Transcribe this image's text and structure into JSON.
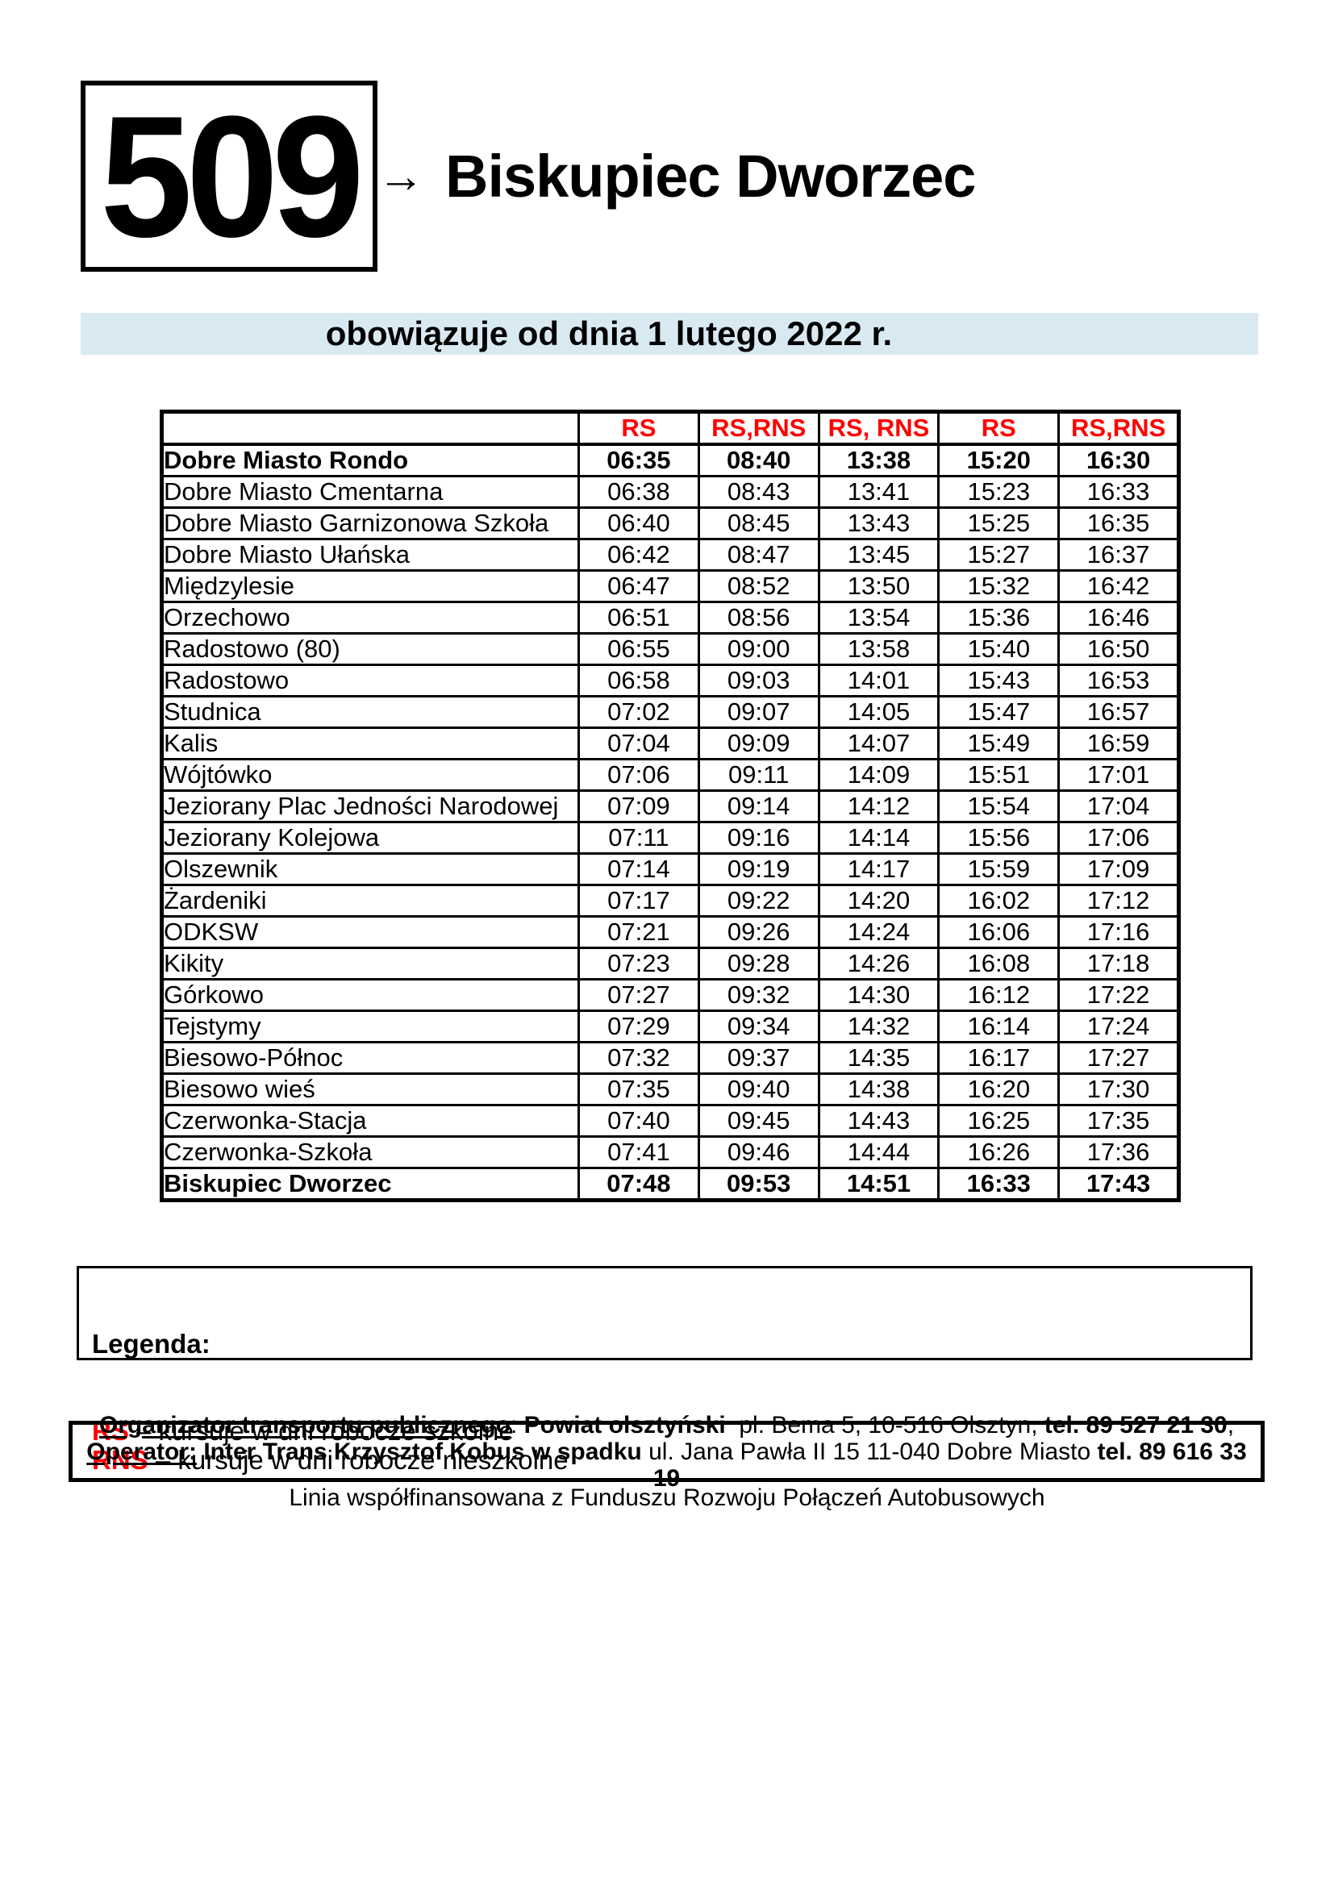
{
  "route": {
    "number": "509",
    "arrow": "→",
    "destination": "Biskupiec Dworzec"
  },
  "validity_banner": "obowiązuje od dnia 1 lutego 2022 r.",
  "timetable": {
    "column_headers": [
      "",
      "RS",
      "RS,RNS",
      "RS, RNS",
      "RS",
      "RS,RNS"
    ],
    "rows": [
      {
        "stop": "Dobre Miasto Rondo",
        "times": [
          "06:35",
          "08:40",
          "13:38",
          "15:20",
          "16:30"
        ],
        "bold": true
      },
      {
        "stop": "Dobre Miasto Cmentarna",
        "times": [
          "06:38",
          "08:43",
          "13:41",
          "15:23",
          "16:33"
        ],
        "bold": false
      },
      {
        "stop": "Dobre Miasto Garnizonowa Szkoła",
        "times": [
          "06:40",
          "08:45",
          "13:43",
          "15:25",
          "16:35"
        ],
        "bold": false
      },
      {
        "stop": "Dobre Miasto Ułańska",
        "times": [
          "06:42",
          "08:47",
          "13:45",
          "15:27",
          "16:37"
        ],
        "bold": false
      },
      {
        "stop": "Międzylesie",
        "times": [
          "06:47",
          "08:52",
          "13:50",
          "15:32",
          "16:42"
        ],
        "bold": false
      },
      {
        "stop": "Orzechowo",
        "times": [
          "06:51",
          "08:56",
          "13:54",
          "15:36",
          "16:46"
        ],
        "bold": false
      },
      {
        "stop": "Radostowo (80)",
        "times": [
          "06:55",
          "09:00",
          "13:58",
          "15:40",
          "16:50"
        ],
        "bold": false
      },
      {
        "stop": "Radostowo",
        "times": [
          "06:58",
          "09:03",
          "14:01",
          "15:43",
          "16:53"
        ],
        "bold": false
      },
      {
        "stop": "Studnica",
        "times": [
          "07:02",
          "09:07",
          "14:05",
          "15:47",
          "16:57"
        ],
        "bold": false
      },
      {
        "stop": "Kalis",
        "times": [
          "07:04",
          "09:09",
          "14:07",
          "15:49",
          "16:59"
        ],
        "bold": false
      },
      {
        "stop": "Wójtówko",
        "times": [
          "07:06",
          "09:11",
          "14:09",
          "15:51",
          "17:01"
        ],
        "bold": false
      },
      {
        "stop": "Jeziorany Plac Jedności Narodowej",
        "times": [
          "07:09",
          "09:14",
          "14:12",
          "15:54",
          "17:04"
        ],
        "bold": false
      },
      {
        "stop": "Jeziorany Kolejowa",
        "times": [
          "07:11",
          "09:16",
          "14:14",
          "15:56",
          "17:06"
        ],
        "bold": false
      },
      {
        "stop": "Olszewnik",
        "times": [
          "07:14",
          "09:19",
          "14:17",
          "15:59",
          "17:09"
        ],
        "bold": false
      },
      {
        "stop": "Żardeniki",
        "times": [
          "07:17",
          "09:22",
          "14:20",
          "16:02",
          "17:12"
        ],
        "bold": false
      },
      {
        "stop": "ODKSW",
        "times": [
          "07:21",
          "09:26",
          "14:24",
          "16:06",
          "17:16"
        ],
        "bold": false
      },
      {
        "stop": "Kikity",
        "times": [
          "07:23",
          "09:28",
          "14:26",
          "16:08",
          "17:18"
        ],
        "bold": false
      },
      {
        "stop": "Górkowo",
        "times": [
          "07:27",
          "09:32",
          "14:30",
          "16:12",
          "17:22"
        ],
        "bold": false
      },
      {
        "stop": "Tejstymy",
        "times": [
          "07:29",
          "09:34",
          "14:32",
          "16:14",
          "17:24"
        ],
        "bold": false
      },
      {
        "stop": "Biesowo-Północ",
        "times": [
          "07:32",
          "09:37",
          "14:35",
          "16:17",
          "17:27"
        ],
        "bold": false
      },
      {
        "stop": "Biesowo wieś",
        "times": [
          "07:35",
          "09:40",
          "14:38",
          "16:20",
          "17:30"
        ],
        "bold": false
      },
      {
        "stop": "Czerwonka-Stacja",
        "times": [
          "07:40",
          "09:45",
          "14:43",
          "16:25",
          "17:35"
        ],
        "bold": false
      },
      {
        "stop": "Czerwonka-Szkoła",
        "times": [
          "07:41",
          "09:46",
          "14:44",
          "16:26",
          "17:36"
        ],
        "bold": false
      },
      {
        "stop": "Biskupiec Dworzec",
        "times": [
          "07:48",
          "09:53",
          "14:51",
          "16:33",
          "17:43"
        ],
        "bold": true
      }
    ]
  },
  "legend": {
    "title": "Legenda:",
    "items": [
      {
        "code": "RS",
        "rest": " – kursuje w dni robocze szkolne"
      },
      {
        "code": "RNS",
        "rest": " – kursuje w dni robocze nieszkolne"
      }
    ]
  },
  "footer": {
    "line1": [
      {
        "text": "Organizator transportu publicznego",
        "style": "bu"
      },
      {
        "text": ": ",
        "style": "r"
      },
      {
        "text": "Powiat olsztyński",
        "style": "b"
      },
      {
        "text": "  pl. Bema 5, 10-516 Olsztyn, ",
        "style": "r"
      },
      {
        "text": "tel. 89 527 21 30",
        "style": "b"
      },
      {
        "text": ",",
        "style": "r"
      }
    ],
    "line2": [
      {
        "text": "Operator:",
        "style": "bu"
      },
      {
        "text": " ",
        "style": "r"
      },
      {
        "text": "Inter Trans Krzysztof Kobus w spadku",
        "style": "b"
      },
      {
        "text": " ul. Jana Pawła II 15 11-040 Dobre Miasto ",
        "style": "r"
      },
      {
        "text": "tel. 89 616 33 19",
        "style": "b"
      }
    ],
    "funding_note": "Linia współfinansowana z Funduszu Rozwoju Połączeń Autobusowych"
  },
  "colors": {
    "accent_red": "#ff0000",
    "banner_bg": "#d9e9f2",
    "text": "#000000"
  }
}
